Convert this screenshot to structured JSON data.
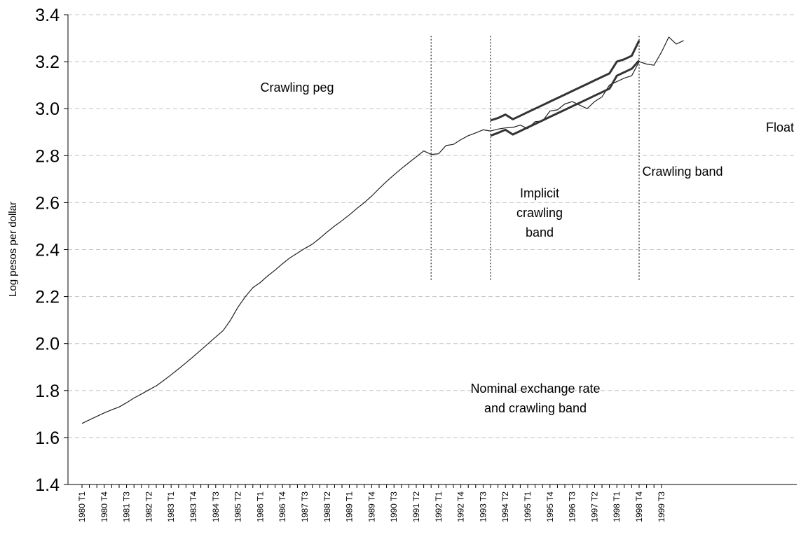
{
  "chart_data": {
    "type": "line",
    "title": "",
    "xlabel": "",
    "ylabel": "Log pesos per dollar",
    "ylim": [
      1.4,
      3.4
    ],
    "yticks": [
      "1.4",
      "1.6",
      "1.8",
      "2.0",
      "2.2",
      "2.4",
      "2.6",
      "2.8",
      "3.0",
      "3.2",
      "3.4"
    ],
    "grid": "horizontal dashed",
    "xtick_labels": [
      "1980 T1",
      "1980 T4",
      "1981 T3",
      "1982 T2",
      "1983 T1",
      "1983 T4",
      "1984 T3",
      "1985 T2",
      "1986 T1",
      "1986 T4",
      "1987 T3",
      "1988 T2",
      "1989 T1",
      "1989 T4",
      "1990 T3",
      "1991 T2",
      "1992 T1",
      "1992 T4",
      "1993 T3",
      "1994 T2",
      "1995 T1",
      "1995 T4",
      "1996 T3",
      "1997 T2",
      "1998 T1",
      "1998 T4",
      "1999 T3"
    ],
    "xtick_every_n_quarters": 3,
    "series": [
      {
        "key": "rate",
        "color": "#222222",
        "x_start": "1980 T1",
        "values": [
          1.66,
          1.675,
          1.69,
          1.705,
          1.718,
          1.73,
          1.748,
          1.768,
          1.785,
          1.803,
          1.82,
          1.843,
          1.867,
          1.892,
          1.918,
          1.945,
          1.972,
          2.0,
          2.028,
          2.055,
          2.1,
          2.155,
          2.2,
          2.238,
          2.26,
          2.288,
          2.313,
          2.34,
          2.365,
          2.385,
          2.405,
          2.423,
          2.448,
          2.475,
          2.5,
          2.523,
          2.548,
          2.575,
          2.6,
          2.628,
          2.66,
          2.69,
          2.718,
          2.745,
          2.77,
          2.795,
          2.82,
          2.805,
          2.808,
          2.843,
          2.848,
          2.868,
          2.885,
          2.897,
          2.91,
          2.905,
          2.913,
          2.918,
          2.92,
          2.93,
          2.915,
          2.945,
          2.947,
          2.99,
          2.995,
          3.02,
          3.03,
          3.015,
          3.0,
          3.03,
          3.05,
          3.1,
          3.115,
          3.13,
          3.14,
          3.2,
          3.19,
          3.185,
          3.24,
          3.305,
          3.275,
          3.29
        ]
      },
      {
        "key": "band-upper",
        "color": "#333333",
        "x_start": "1993 T4",
        "values": [
          2.95,
          2.96,
          2.975,
          2.955,
          2.97,
          2.985,
          3.0,
          3.015,
          3.03,
          3.045,
          3.06,
          3.075,
          3.09,
          3.105,
          3.12,
          3.135,
          3.15,
          3.2,
          3.21,
          3.225,
          3.29
        ]
      },
      {
        "key": "band-lower",
        "color": "#333333",
        "x_start": "1993 T4",
        "values": [
          2.885,
          2.897,
          2.91,
          2.89,
          2.905,
          2.92,
          2.935,
          2.95,
          2.965,
          2.98,
          2.995,
          3.01,
          3.025,
          3.04,
          3.055,
          3.07,
          3.085,
          3.14,
          3.155,
          3.17,
          3.205
        ]
      }
    ],
    "regime_dividers": [
      "1991 T4",
      "1993 T4",
      "1998 T4"
    ],
    "annotations": [
      {
        "id": "crawling-peg",
        "lines": [
          "Crawling peg"
        ]
      },
      {
        "id": "implicit-band",
        "lines": [
          "Implicit",
          "crawling",
          "band"
        ]
      },
      {
        "id": "crawling-band",
        "lines": [
          "Crawling band"
        ]
      },
      {
        "id": "float",
        "lines": [
          "Float"
        ]
      },
      {
        "id": "nominal-rate",
        "lines": [
          "Nominal exchange rate",
          "and crawling band"
        ]
      }
    ]
  }
}
